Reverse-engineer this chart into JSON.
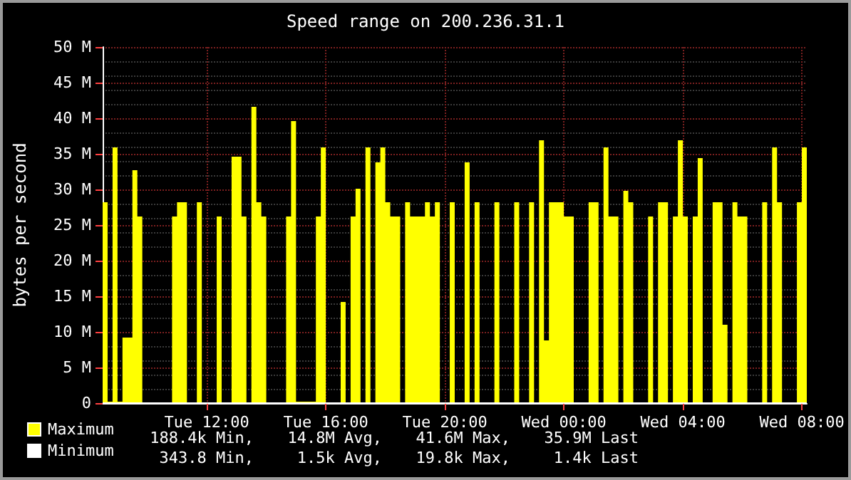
{
  "chart_data": {
    "type": "area",
    "title": "Speed range on 200.236.31.1",
    "ylabel": "bytes per second",
    "categories": [
      null,
      null,
      null,
      null,
      null,
      null,
      null,
      null,
      null,
      null,
      null,
      null,
      null,
      null,
      null,
      null,
      null,
      null,
      null,
      null,
      null,
      "Tue 12:00",
      null,
      null,
      null,
      null,
      null,
      null,
      null,
      null,
      null,
      null,
      null,
      null,
      null,
      null,
      null,
      null,
      null,
      null,
      null,
      null,
      null,
      null,
      null,
      "Tue 16:00",
      null,
      null,
      null,
      null,
      null,
      null,
      null,
      null,
      null,
      null,
      null,
      null,
      null,
      null,
      null,
      null,
      null,
      null,
      null,
      null,
      null,
      null,
      null,
      "Tue 20:00",
      null,
      null,
      null,
      null,
      null,
      null,
      null,
      null,
      null,
      null,
      null,
      null,
      null,
      null,
      null,
      null,
      null,
      null,
      null,
      null,
      null,
      null,
      null,
      "Wed 00:00",
      null,
      null,
      null,
      null,
      null,
      null,
      null,
      null,
      null,
      null,
      null,
      null,
      null,
      null,
      null,
      null,
      null,
      null,
      null,
      null,
      null,
      null,
      null,
      "Wed 04:00",
      null,
      null,
      null,
      null,
      null,
      null,
      null,
      null,
      null,
      null,
      null,
      null,
      null,
      null,
      null,
      null,
      null,
      null,
      null,
      null,
      null,
      null,
      null,
      "Wed 08:00",
      null
    ],
    "ylim": [
      0,
      50
    ],
    "yticks": [
      0,
      {
        "value": 5,
        "label": "5 M"
      },
      {
        "value": 10,
        "label": "10 M"
      },
      {
        "value": 15,
        "label": "15 M"
      },
      {
        "value": 20,
        "label": "20 M"
      },
      {
        "value": 25,
        "label": "25 M"
      },
      {
        "value": 30,
        "label": "30 M"
      },
      {
        "value": 35,
        "label": "35 M"
      },
      {
        "value": 40,
        "label": "40 M"
      },
      {
        "value": 45,
        "label": "45 M"
      },
      {
        "value": 50,
        "label": "50 M"
      }
    ],
    "grid": true,
    "legend": "bottom left",
    "series": [
      {
        "name": "Maximum",
        "color": "#ffff00",
        "values": [
          28.2,
          0.2,
          35.9,
          0.2,
          9.2,
          9.2,
          32.7,
          26.2,
          0,
          0,
          0,
          0,
          0,
          0,
          26.2,
          28.2,
          28.2,
          0,
          0,
          28.2,
          0,
          0,
          0,
          26.2,
          0,
          0,
          34.6,
          34.6,
          26.2,
          0,
          41.6,
          28.2,
          26.2,
          0,
          0,
          0,
          0,
          26.2,
          39.6,
          0.2,
          0.2,
          0.2,
          0.2,
          26.2,
          35.9,
          0,
          0,
          0,
          14.2,
          0,
          26.2,
          30.1,
          0,
          35.9,
          0,
          33.8,
          35.9,
          28.2,
          26.2,
          26.2,
          0,
          28.2,
          26.2,
          26.2,
          26.2,
          28.2,
          26.2,
          28.2,
          0,
          0,
          28.2,
          0,
          0,
          33.8,
          0,
          28.2,
          0,
          0,
          0,
          28.2,
          0,
          0,
          0,
          28.2,
          0,
          0,
          28.2,
          0,
          36.9,
          8.8,
          28.2,
          28.2,
          28.2,
          26.2,
          26.2,
          0,
          0,
          0,
          28.2,
          28.2,
          0,
          35.9,
          26.2,
          26.2,
          0,
          29.8,
          28.2,
          0,
          0,
          0,
          26.2,
          0,
          28.2,
          28.2,
          0,
          26.2,
          36.9,
          26.2,
          0,
          26.2,
          34.4,
          0,
          0,
          28.2,
          28.2,
          11.0,
          0,
          28.2,
          26.2,
          26.2,
          0,
          0,
          0,
          28.2,
          0,
          35.9,
          28.2,
          0,
          0,
          0,
          28.2,
          35.9,
          0
        ]
      },
      {
        "name": "Minimum",
        "color": "#ffffff",
        "type": "line",
        "values": [
          0,
          0,
          0,
          0,
          0,
          0,
          0,
          0,
          0,
          0,
          0,
          0,
          0,
          0,
          0,
          0,
          0,
          0,
          0,
          0,
          0,
          0,
          0,
          0,
          0,
          0,
          0,
          0,
          0,
          0,
          0,
          0,
          0,
          0,
          0,
          0,
          0,
          0,
          0,
          0,
          0,
          0,
          0,
          0,
          0,
          0,
          0,
          0,
          0,
          0,
          0,
          0,
          0,
          0,
          0,
          0,
          0,
          0,
          0,
          0,
          0,
          0,
          0,
          0,
          0,
          0,
          0,
          0,
          0,
          0,
          0,
          0,
          0,
          0,
          0,
          0,
          0,
          0,
          0,
          0,
          0,
          0,
          0,
          0,
          0,
          0,
          0,
          0,
          0,
          0,
          0,
          0,
          0,
          0,
          0,
          0,
          0,
          0,
          0,
          0,
          0,
          0,
          0,
          0,
          0,
          0,
          0,
          0,
          0,
          0,
          0,
          0,
          0,
          0,
          0,
          0,
          0,
          0,
          0,
          0,
          0,
          0,
          0,
          0,
          0,
          0,
          0,
          0,
          0,
          0,
          0,
          0,
          0,
          0,
          0,
          0,
          0,
          0,
          0,
          0,
          0,
          0,
          0
        ]
      }
    ],
    "annotations": [
      "188.4k Min,",
      "14.8M Avg,",
      "41.6M Max,",
      "35.9M Last",
      "343.8 Min,",
      "1.5k Avg,",
      "19.8k Max,",
      "1.4k Last"
    ]
  }
}
